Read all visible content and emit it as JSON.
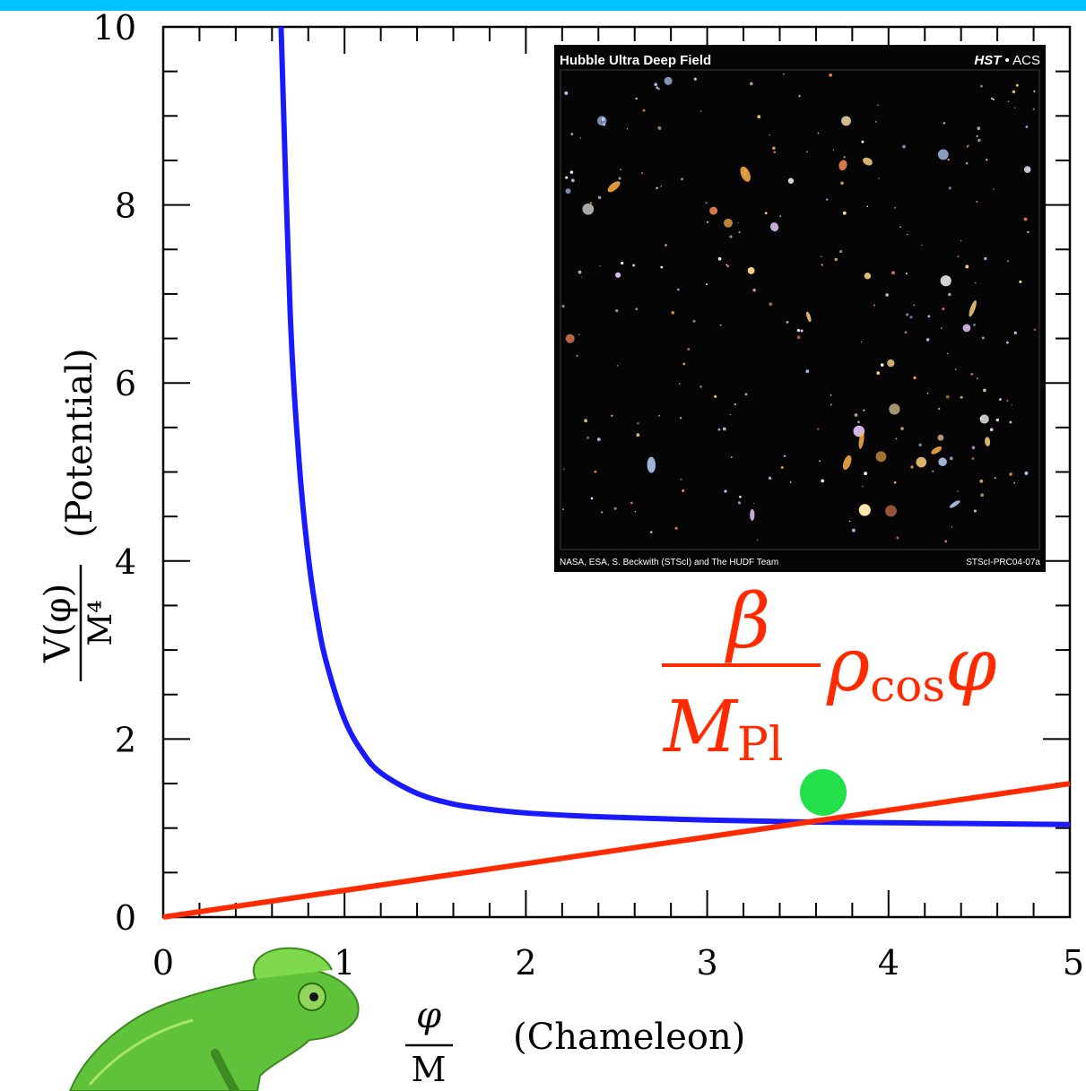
{
  "chart_data": {
    "type": "line",
    "xlim": [
      0,
      5
    ],
    "ylim": [
      0,
      10
    ],
    "x_ticks": [
      0,
      1,
      2,
      3,
      4,
      5
    ],
    "x_tick_labels": [
      "0",
      "1",
      "2",
      "3",
      "4",
      "5"
    ],
    "y_ticks": [
      0,
      2,
      4,
      6,
      8,
      10
    ],
    "y_tick_labels": [
      "0",
      "2",
      "4",
      "6",
      "8",
      "10"
    ],
    "x_minor_step": 0.2,
    "y_minor_step": 0.5,
    "xlabel": {
      "numerator": "φ",
      "denominator": "M",
      "text": "(Chameleon)"
    },
    "ylabel": {
      "numerator": "V(φ)",
      "denominator": "M⁴",
      "text": "(Potential)"
    },
    "grid": false,
    "series": [
      {
        "color": "#1a1aff",
        "x": [
          0.65,
          0.7,
          0.75,
          0.8,
          0.85,
          0.9,
          1.0,
          1.1,
          1.2,
          1.4,
          1.6,
          1.8,
          2.0,
          2.25,
          2.5,
          3.0,
          3.5,
          4.0,
          4.5,
          5.0
        ],
        "y": [
          10.0,
          6.8,
          5.1,
          4.05,
          3.35,
          2.86,
          2.22,
          1.85,
          1.62,
          1.39,
          1.27,
          1.21,
          1.17,
          1.14,
          1.12,
          1.09,
          1.07,
          1.06,
          1.05,
          1.04
        ]
      },
      {
        "color": "#ff2a00",
        "x": [
          0,
          5
        ],
        "y": [
          0,
          1.5
        ]
      }
    ],
    "marker": {
      "x": 3.64,
      "y": 1.4,
      "color": "#22e04a"
    },
    "annotation": {
      "numerator": "β",
      "denominator": "M",
      "denominator_subscript": "Pl",
      "base": "ρ",
      "base_subscript": "cos",
      "trailing": "φ",
      "color": "#ff2a00"
    }
  },
  "inset_image": {
    "title": "Hubble Ultra Deep Field",
    "badge_bold": "HST",
    "badge_rest": " • ACS",
    "credit_left": "NASA, ESA, S. Beckwith (STScI) and The HUDF Team",
    "credit_right": "STScI-PRC04-07a"
  },
  "colors": {
    "top_band": "#00c2ff",
    "axis": "#000000"
  }
}
